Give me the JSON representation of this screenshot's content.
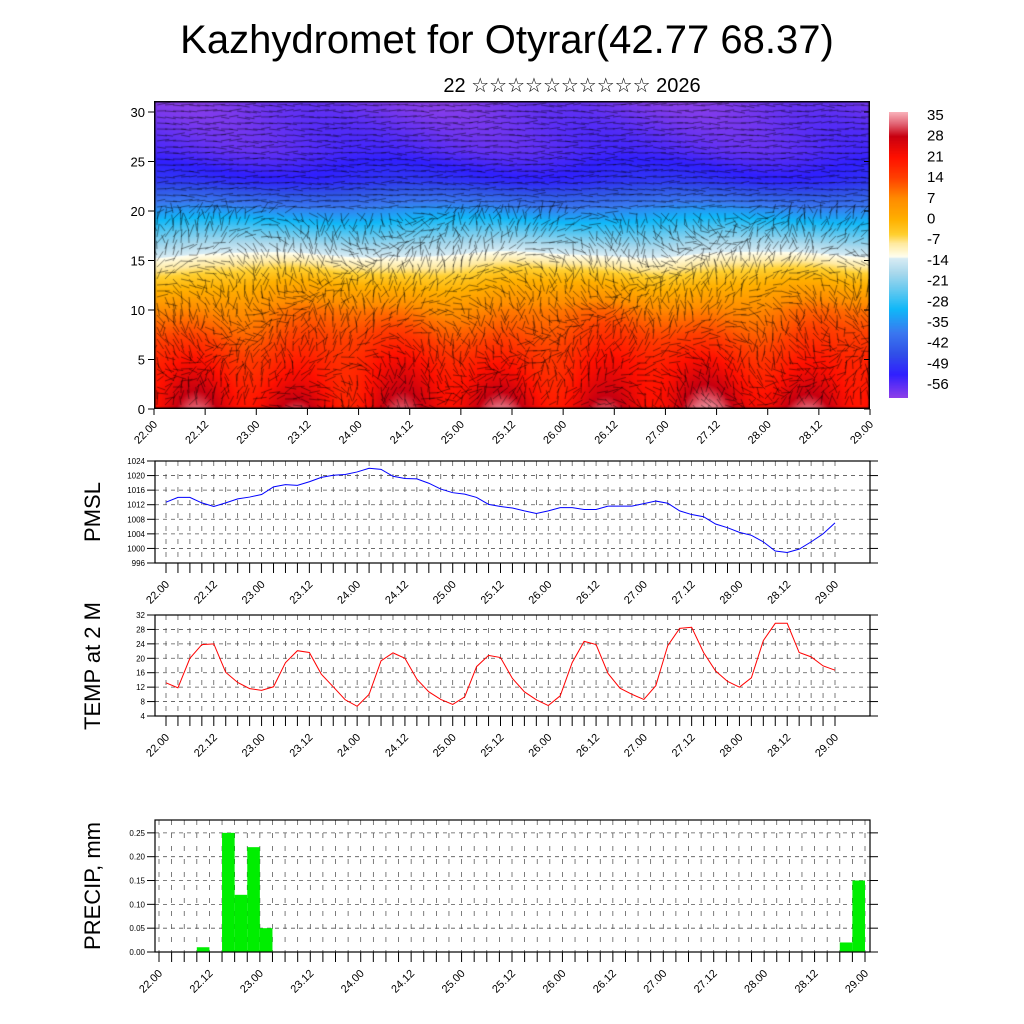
{
  "title": "Kazhydromet for Otyrar(42.77 68.37)",
  "subtitle": "22 ☆☆☆☆☆☆☆☆☆☆ 2026",
  "x_labels": [
    "22.00",
    "22.12",
    "23.00",
    "23.12",
    "24.00",
    "24.12",
    "25.00",
    "25.12",
    "26.00",
    "26.12",
    "27.00",
    "27.12",
    "28.00",
    "28.12",
    "29.00"
  ],
  "chart_data": [
    {
      "type": "heatmap",
      "name": "temperature-wind-section",
      "ylabel": "",
      "yticks": [
        0,
        5,
        10,
        15,
        20,
        25,
        30
      ],
      "ylim": [
        0,
        31
      ],
      "colorbar_labels": [
        "35",
        "28",
        "21",
        "14",
        "7",
        "0",
        "-7",
        "-14",
        "-21",
        "-28",
        "-35",
        "-42",
        "-49",
        "-56"
      ],
      "colorbar_range": [
        -60,
        36
      ],
      "colors": {
        "hot": "#ff1000",
        "cold": "#3020ff"
      }
    },
    {
      "type": "line",
      "name": "pmsl",
      "ylabel": "PMSL",
      "ylim": [
        996,
        1024
      ],
      "yticks": [
        "996",
        "1000",
        "1004",
        "1008",
        "1012",
        "1016",
        "1020",
        "1024"
      ],
      "color": "#0000ff",
      "step_hours": 3,
      "values": [
        1012.7,
        1014,
        1014,
        1012.5,
        1011.5,
        1012.5,
        1013.6,
        1014.1,
        1014.8,
        1016.9,
        1017.5,
        1017.3,
        1018.3,
        1019.5,
        1020.1,
        1020.3,
        1021,
        1022,
        1021.7,
        1019.8,
        1019.2,
        1019.1,
        1017.9,
        1016.3,
        1015.3,
        1014.9,
        1014,
        1012.1,
        1011.5,
        1011.1,
        1010.3,
        1009.6,
        1010.3,
        1011.2,
        1011.2,
        1010.7,
        1010.7,
        1011.6,
        1011.6,
        1011.6,
        1012.3,
        1013,
        1012.4,
        1010.3,
        1009.3,
        1008.7,
        1006.7,
        1005.7,
        1004.4,
        1003.6,
        1001.8,
        999.3,
        998.9,
        999.8,
        1001.8,
        1004,
        1007
      ]
    },
    {
      "type": "line",
      "name": "temp-2m",
      "ylabel": "TEMP at 2 M",
      "ylim": [
        4,
        32
      ],
      "yticks": [
        "4",
        "8",
        "12",
        "16",
        "20",
        "24",
        "28",
        "32"
      ],
      "color": "#ff0000",
      "step_hours": 3,
      "values": [
        13.2,
        11.8,
        20,
        23.8,
        24,
        16.1,
        13.3,
        11.6,
        11.1,
        12.1,
        18.8,
        22.1,
        21.6,
        15.6,
        12.1,
        8.5,
        6.7,
        10,
        19.3,
        21.5,
        20,
        14.2,
        10.7,
        8.6,
        7.2,
        9.3,
        17.7,
        20.8,
        20.2,
        14.4,
        10.7,
        8.5,
        6.9,
        9.6,
        18.8,
        24.7,
        23.8,
        15.8,
        11.7,
        10,
        8.6,
        12.4,
        23.5,
        28.3,
        28.6,
        21.6,
        16.5,
        13.6,
        12,
        14.6,
        24.9,
        29.7,
        29.7,
        21.6,
        20.4,
        17.9,
        16.7
      ]
    },
    {
      "type": "bar",
      "name": "precip",
      "ylabel": "PRECIP, mm",
      "ylim": [
        0,
        0.277
      ],
      "yticks": [
        "0.00",
        "0.05",
        "0.10",
        "0.15",
        "0.20",
        "0.25"
      ],
      "color": "#00ee00",
      "step_hours": 3,
      "bars": [
        {
          "interval": 3,
          "value": 0.01
        },
        {
          "interval": 5,
          "value": 0.25
        },
        {
          "interval": 6,
          "value": 0.12
        },
        {
          "interval": 7,
          "value": 0.22
        },
        {
          "interval": 8,
          "value": 0.05
        },
        {
          "interval": 54,
          "value": 0.02
        },
        {
          "interval": 55,
          "value": 0.15
        }
      ]
    }
  ]
}
